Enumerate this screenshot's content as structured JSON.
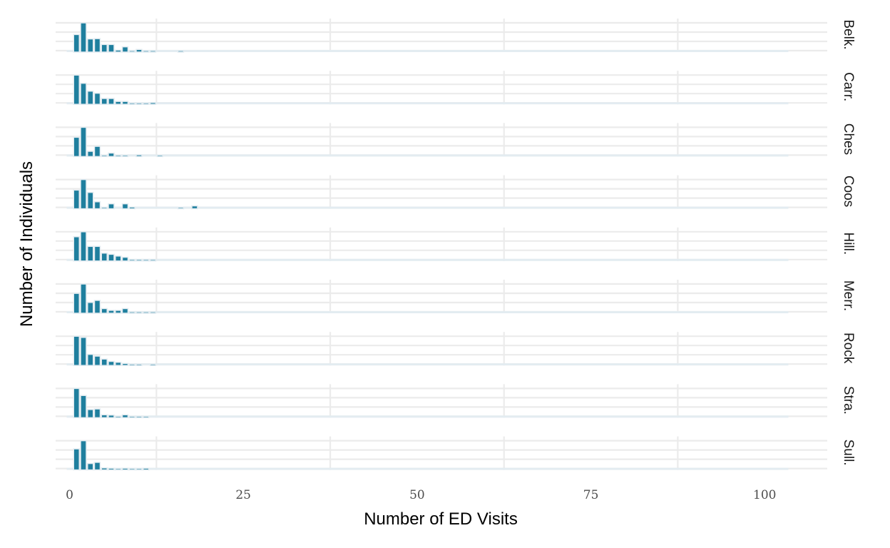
{
  "chart_data": {
    "type": "bar",
    "xlabel": "Number of ED Visits",
    "ylabel": "Number of Individuals",
    "xlim": [
      -2,
      109
    ],
    "x_ticks": [
      0,
      25,
      50,
      75,
      100
    ],
    "bar_color": "#1f7f9e",
    "bar_outline_color": "#e3ecf1",
    "grid": true,
    "facet_position": "right",
    "panels": [
      {
        "label": "Belk.",
        "values": [
          0.6,
          1.0,
          0.45,
          0.46,
          0.26,
          0.26,
          0.07,
          0.18,
          0.02,
          0.09,
          0.04,
          0.05,
          0.0,
          0.0,
          0.0,
          0.03
        ]
      },
      {
        "label": "Carr.",
        "values": [
          1.0,
          0.72,
          0.45,
          0.38,
          0.2,
          0.2,
          0.1,
          0.1,
          0.02,
          0.03,
          0.03,
          0.06
        ]
      },
      {
        "label": "Ches",
        "values": [
          0.66,
          1.0,
          0.18,
          0.35,
          0.04,
          0.12,
          0.03,
          0.04,
          0.0,
          0.06,
          0.0,
          0.0,
          0.03
        ]
      },
      {
        "label": "Coos",
        "values": [
          0.64,
          1.0,
          0.56,
          0.24,
          0.04,
          0.17,
          0.0,
          0.17,
          0.06,
          0.0,
          0.0,
          0.0,
          0.0,
          0.0,
          0.0,
          0.03,
          0.0,
          0.1
        ]
      },
      {
        "label": "Hill.",
        "values": [
          0.83,
          1.0,
          0.5,
          0.5,
          0.27,
          0.23,
          0.17,
          0.13,
          0.05,
          0.05,
          0.03,
          0.03
        ]
      },
      {
        "label": "Merr.",
        "values": [
          0.68,
          1.0,
          0.37,
          0.44,
          0.16,
          0.1,
          0.1,
          0.16,
          0.03,
          0.04,
          0.02,
          0.03
        ]
      },
      {
        "label": "Rock",
        "values": [
          1.0,
          0.96,
          0.38,
          0.32,
          0.22,
          0.14,
          0.11,
          0.07,
          0.04,
          0.02,
          0.0,
          0.02
        ]
      },
      {
        "label": "Stra.",
        "values": [
          1.0,
          0.76,
          0.28,
          0.3,
          0.1,
          0.09,
          0.03,
          0.1,
          0.02,
          0.03,
          0.03
        ]
      },
      {
        "label": "Sull.",
        "values": [
          0.72,
          1.0,
          0.22,
          0.26,
          0.07,
          0.06,
          0.03,
          0.06,
          0.02,
          0.04,
          0.06
        ]
      }
    ]
  }
}
